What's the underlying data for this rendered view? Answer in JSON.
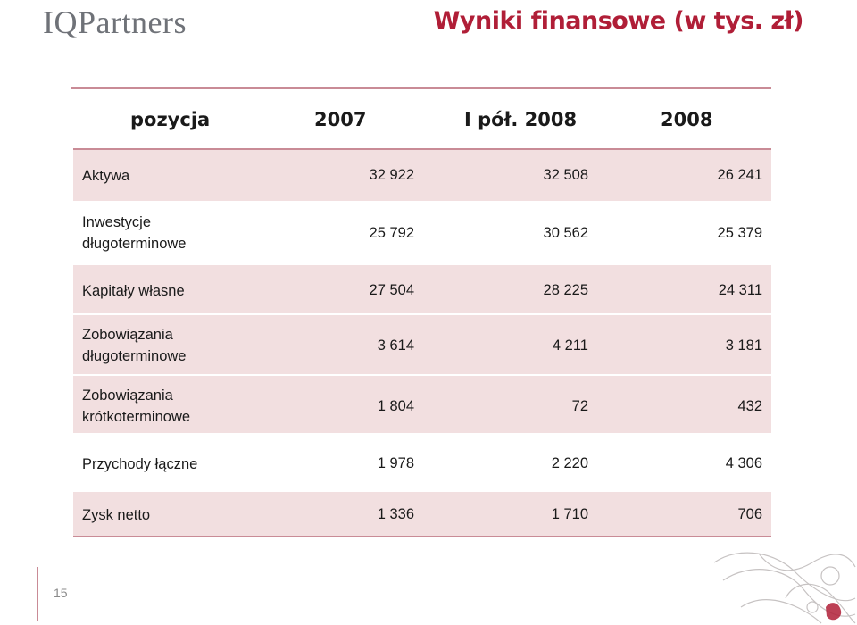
{
  "logo": "IQPartners",
  "title": "Wyniki finansowe (w tys. zł)",
  "header": {
    "col_pos": "pozycja",
    "col_2007": "2007",
    "col_h2008": "I pół. 2008",
    "col_2008": "2008"
  },
  "rows": [
    {
      "label_1": "Aktywa",
      "label_2": "",
      "v2007": "32 922",
      "vh2008": "32 508",
      "v2008": "26 241"
    },
    {
      "label_1": "Inwestycje",
      "label_2": "długoterminowe",
      "v2007": "25 792",
      "vh2008": "30 562",
      "v2008": "25 379"
    },
    {
      "label_1": "Kapitały własne",
      "label_2": "",
      "v2007": "27 504",
      "vh2008": "28 225",
      "v2008": "24 311"
    },
    {
      "label_1": "Zobowiązania",
      "label_2": "długoterminowe",
      "v2007": "3 614",
      "vh2008": "4 211",
      "v2008": "3 181"
    },
    {
      "label_1": "Zobowiązania",
      "label_2": "krótkoterminowe",
      "v2007": "1 804",
      "vh2008": "72",
      "v2008": "432"
    },
    {
      "label_1": "Przychody łączne",
      "label_2": "",
      "v2007": "1 978",
      "vh2008": "2 220",
      "v2008": "4 306"
    },
    {
      "label_1": "Zysk netto",
      "label_2": "",
      "v2007": "1 336",
      "vh2008": "1 710",
      "v2008": "706"
    }
  ],
  "page_number": "15",
  "colors": {
    "accent": "#b01e37",
    "row_fill": "#f2dfe0",
    "rule": "#c98b96"
  }
}
